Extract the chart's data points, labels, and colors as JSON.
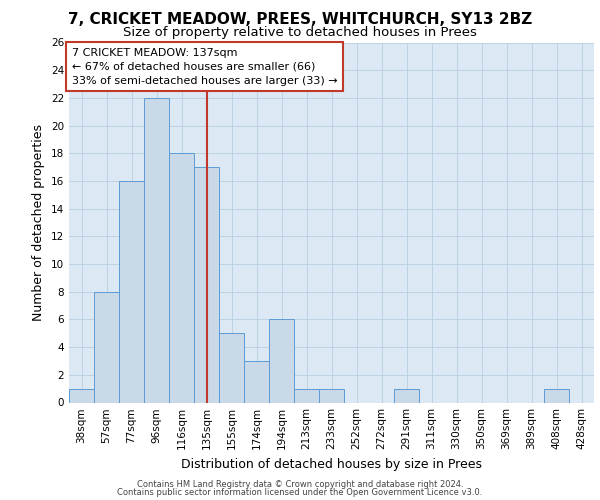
{
  "title1": "7, CRICKET MEADOW, PREES, WHITCHURCH, SY13 2BZ",
  "title2": "Size of property relative to detached houses in Prees",
  "xlabel": "Distribution of detached houses by size in Prees",
  "ylabel": "Number of detached properties",
  "bar_labels": [
    "38sqm",
    "57sqm",
    "77sqm",
    "96sqm",
    "116sqm",
    "135sqm",
    "155sqm",
    "174sqm",
    "194sqm",
    "213sqm",
    "233sqm",
    "252sqm",
    "272sqm",
    "291sqm",
    "311sqm",
    "330sqm",
    "350sqm",
    "369sqm",
    "389sqm",
    "408sqm",
    "428sqm"
  ],
  "bar_values": [
    1,
    8,
    16,
    22,
    18,
    17,
    5,
    3,
    6,
    1,
    1,
    0,
    0,
    1,
    0,
    0,
    0,
    0,
    0,
    1,
    0
  ],
  "bar_color": "#c9d9e8",
  "bar_edgecolor": "#5b9bd5",
  "vline_color": "#c0392b",
  "vline_pos": 5.0,
  "annotation_text": "7 CRICKET MEADOW: 137sqm\n← 67% of detached houses are smaller (66)\n33% of semi-detached houses are larger (33) →",
  "annotation_box_edgecolor": "#c0392b",
  "annotation_box_facecolor": "#ffffff",
  "ylim": [
    0,
    26
  ],
  "yticks": [
    0,
    2,
    4,
    6,
    8,
    10,
    12,
    14,
    16,
    18,
    20,
    22,
    24,
    26
  ],
  "grid_color": "#b8cfe0",
  "background_color": "#dce9f5",
  "footer1": "Contains HM Land Registry data © Crown copyright and database right 2024.",
  "footer2": "Contains public sector information licensed under the Open Government Licence v3.0.",
  "title1_fontsize": 11,
  "title2_fontsize": 9.5,
  "tick_fontsize": 7.5,
  "ylabel_fontsize": 9,
  "xlabel_fontsize": 9,
  "annotation_fontsize": 8,
  "footer_fontsize": 6
}
